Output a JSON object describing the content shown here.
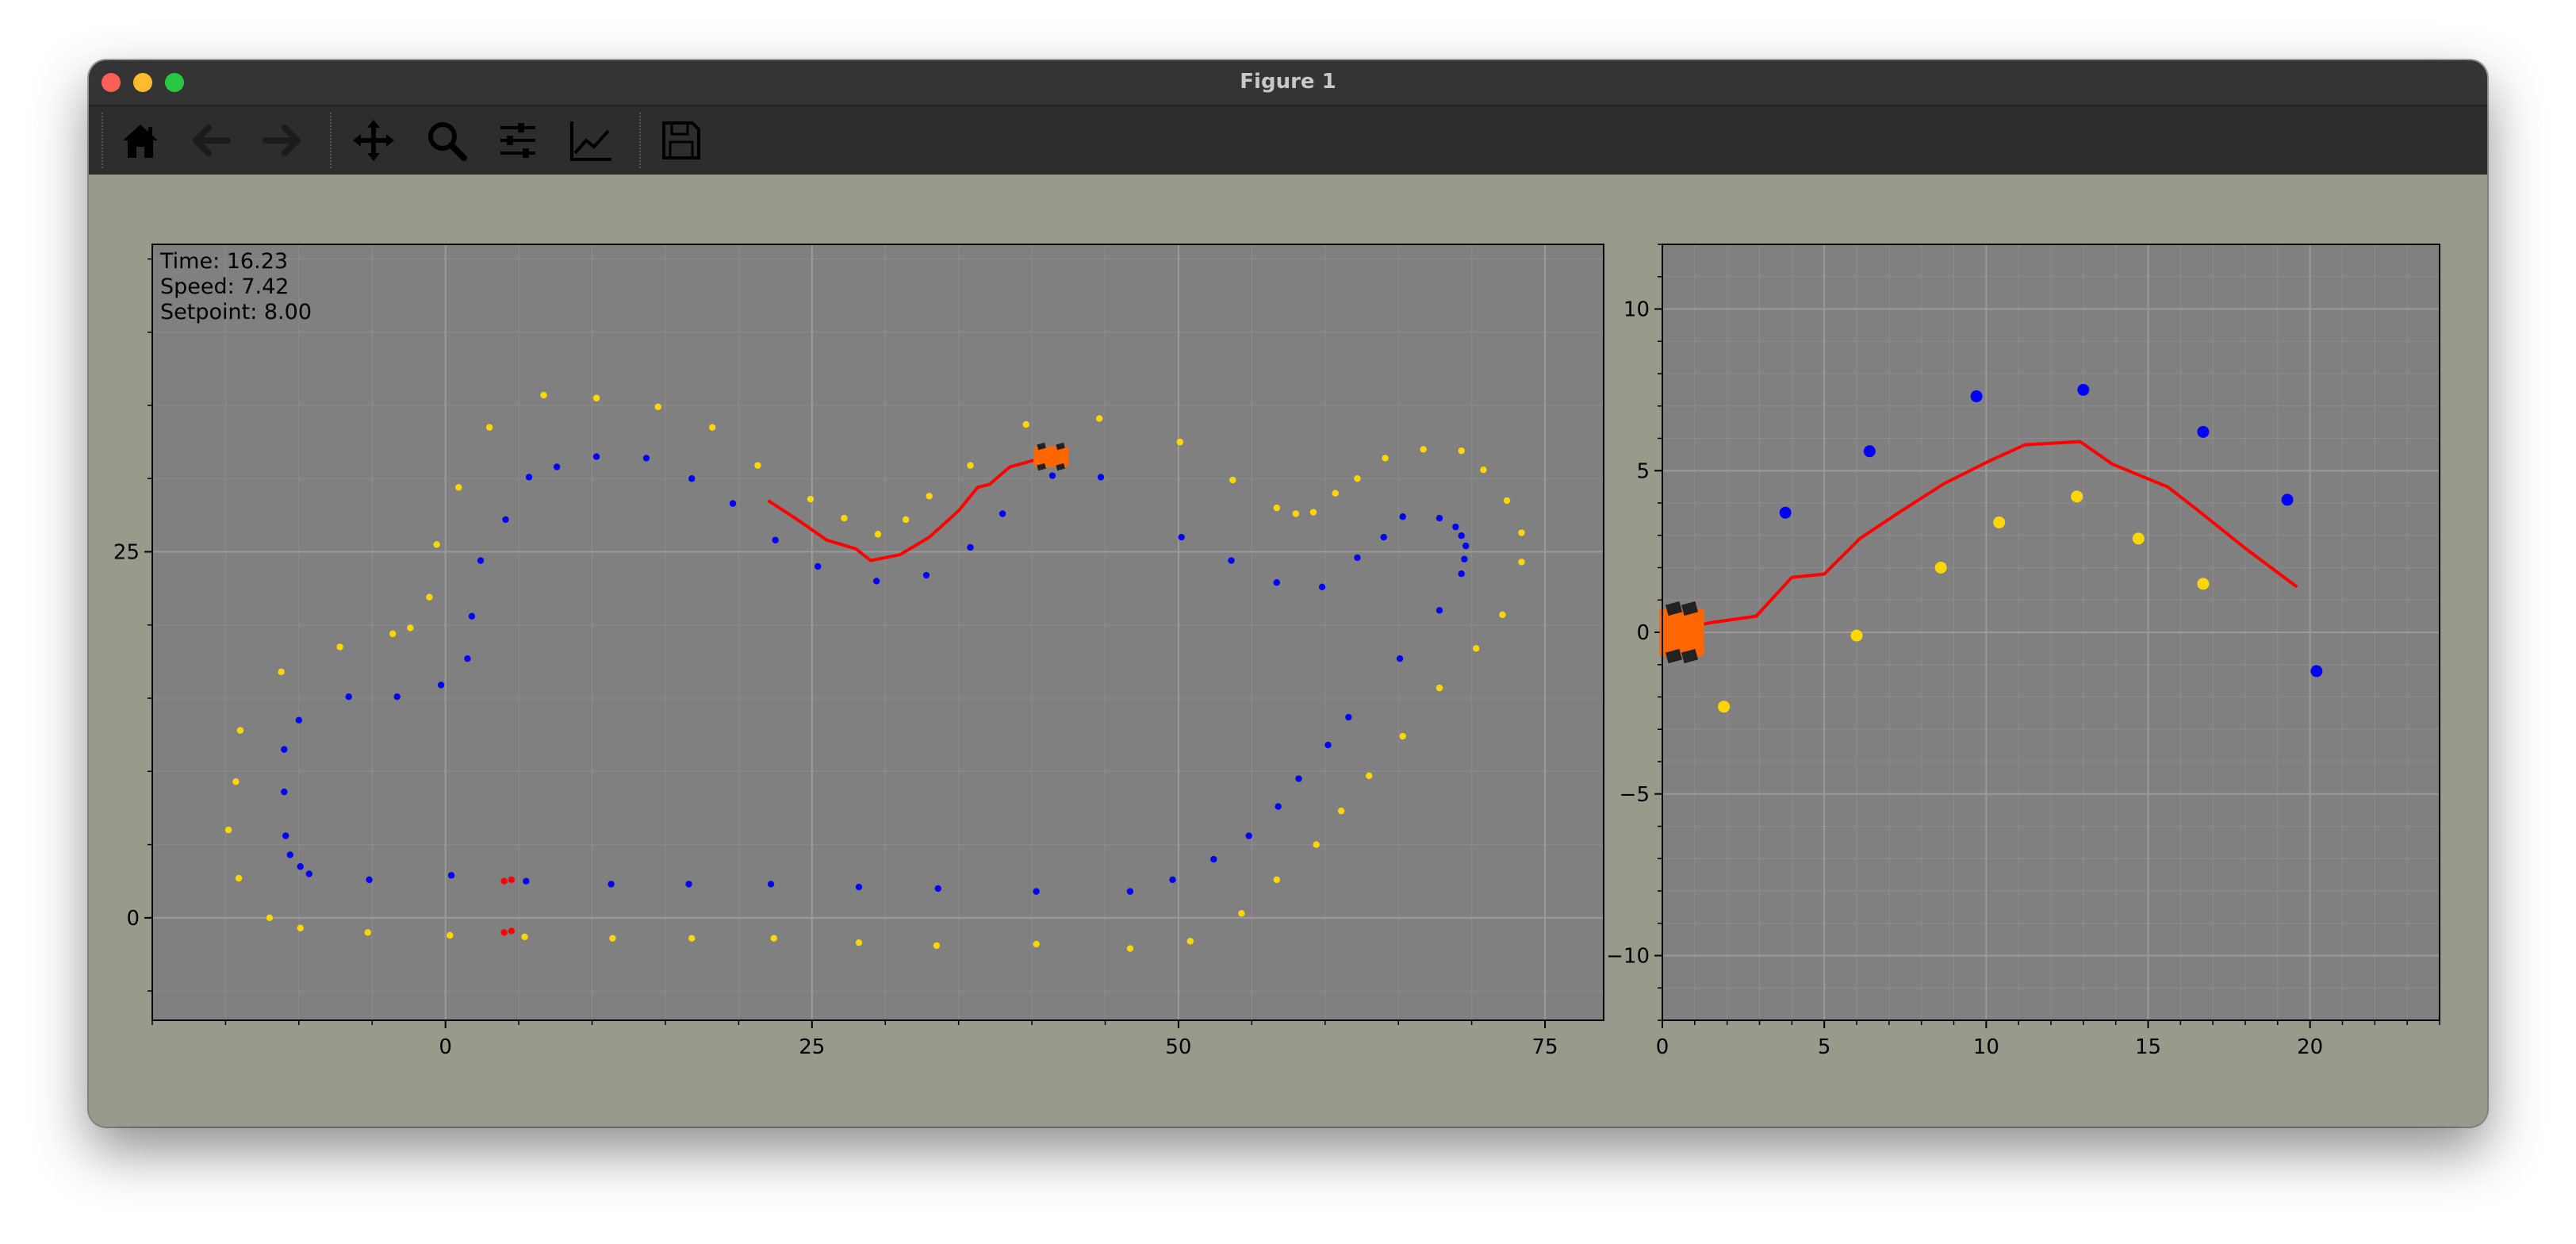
{
  "window": {
    "title": "Figure 1"
  },
  "toolbar": {
    "items": [
      {
        "name": "home",
        "icon": "home-icon"
      },
      {
        "name": "back",
        "icon": "arrow-left-icon"
      },
      {
        "name": "forward",
        "icon": "arrow-right-icon"
      },
      {
        "name": "pan",
        "icon": "move-icon"
      },
      {
        "name": "zoom",
        "icon": "magnifier-icon"
      },
      {
        "name": "configure-subplots",
        "icon": "sliders-icon"
      },
      {
        "name": "edit-axis",
        "icon": "line-chart-icon"
      },
      {
        "name": "save",
        "icon": "floppy-icon"
      }
    ]
  },
  "colors": {
    "figure_bg": "#999a8b",
    "axes_bg": "#808080",
    "blue_cones": "#0000ff",
    "yellow_cones": "#ffd700",
    "path": "#ff0000",
    "car": "#ff6600",
    "wheel": "#222222"
  },
  "chart_data": [
    {
      "type": "scatter",
      "panel": "track",
      "text_lines": [
        "Time:  16.23",
        "Speed:  7.42",
        "Setpoint:  8.00"
      ],
      "xlim": [
        -20,
        79
      ],
      "ylim": [
        -7,
        46
      ],
      "xticks": [
        0,
        25,
        50,
        75
      ],
      "yticks": [
        0,
        25
      ],
      "grid": true,
      "series": [
        {
          "color": "blue",
          "points": [
            [
              -11,
              11.5
            ],
            [
              -10,
              13.5
            ],
            [
              -11,
              8.6
            ],
            [
              -10.9,
              5.6
            ],
            [
              -10.6,
              4.3
            ],
            [
              -9.9,
              3.5
            ],
            [
              -9.3,
              3.0
            ],
            [
              -5.2,
              2.6
            ],
            [
              0.4,
              2.9
            ],
            [
              5.5,
              2.5
            ],
            [
              11.3,
              2.3
            ],
            [
              16.6,
              2.3
            ],
            [
              22.2,
              2.3
            ],
            [
              28.2,
              2.1
            ],
            [
              33.6,
              2.0
            ],
            [
              40.3,
              1.8
            ],
            [
              46.7,
              1.8
            ],
            [
              49.6,
              2.6
            ],
            [
              52.4,
              4.0
            ],
            [
              54.8,
              5.6
            ],
            [
              56.8,
              7.6
            ],
            [
              58.2,
              9.5
            ],
            [
              60.2,
              11.8
            ],
            [
              61.6,
              13.7
            ],
            [
              65.1,
              17.7
            ],
            [
              67.8,
              21.0
            ],
            [
              69.3,
              23.5
            ],
            [
              69.5,
              24.5
            ],
            [
              69.6,
              25.4
            ],
            [
              69.3,
              26.1
            ],
            [
              68.9,
              26.7
            ],
            [
              67.8,
              27.3
            ],
            [
              65.3,
              27.4
            ],
            [
              64.0,
              26.0
            ],
            [
              62.2,
              24.6
            ],
            [
              59.8,
              22.6
            ],
            [
              56.7,
              22.9
            ],
            [
              53.6,
              24.4
            ],
            [
              50.2,
              26.0
            ],
            [
              44.7,
              30.1
            ],
            [
              41.4,
              30.2
            ],
            [
              38.0,
              27.6
            ],
            [
              35.8,
              25.3
            ],
            [
              32.8,
              23.4
            ],
            [
              29.4,
              23.0
            ],
            [
              25.4,
              24.0
            ],
            [
              22.5,
              25.8
            ],
            [
              19.6,
              28.3
            ],
            [
              16.8,
              30.0
            ],
            [
              13.7,
              31.4
            ],
            [
              10.3,
              31.5
            ],
            [
              7.6,
              30.8
            ],
            [
              5.7,
              30.1
            ],
            [
              4.1,
              27.2
            ],
            [
              2.4,
              24.4
            ],
            [
              1.8,
              20.6
            ],
            [
              1.5,
              17.7
            ],
            [
              -0.3,
              15.9
            ],
            [
              -3.3,
              15.1
            ],
            [
              -6.6,
              15.1
            ]
          ]
        },
        {
          "color": "yellow",
          "points": [
            [
              -14.8,
              6.0
            ],
            [
              -14.3,
              9.3
            ],
            [
              -14.0,
              12.8
            ],
            [
              -11.2,
              16.8
            ],
            [
              -7.2,
              18.5
            ],
            [
              -3.6,
              19.4
            ],
            [
              -2.4,
              19.8
            ],
            [
              -1.1,
              21.9
            ],
            [
              -0.6,
              25.5
            ],
            [
              0.9,
              29.4
            ],
            [
              3.0,
              33.5
            ],
            [
              6.7,
              35.7
            ],
            [
              10.3,
              35.5
            ],
            [
              14.5,
              34.9
            ],
            [
              18.2,
              33.5
            ],
            [
              21.3,
              30.9
            ],
            [
              24.9,
              28.6
            ],
            [
              27.2,
              27.3
            ],
            [
              29.5,
              26.2
            ],
            [
              31.4,
              27.2
            ],
            [
              33.0,
              28.8
            ],
            [
              35.8,
              30.9
            ],
            [
              39.6,
              33.7
            ],
            [
              44.6,
              34.1
            ],
            [
              50.1,
              32.5
            ],
            [
              53.7,
              29.9
            ],
            [
              56.7,
              28.0
            ],
            [
              58.0,
              27.6
            ],
            [
              59.2,
              27.7
            ],
            [
              60.7,
              29.0
            ],
            [
              62.2,
              30.0
            ],
            [
              64.1,
              31.4
            ],
            [
              66.7,
              32.0
            ],
            [
              69.3,
              31.9
            ],
            [
              70.8,
              30.6
            ],
            [
              72.4,
              28.5
            ],
            [
              73.4,
              26.3
            ],
            [
              73.4,
              24.3
            ],
            [
              72.1,
              20.7
            ],
            [
              70.3,
              18.4
            ],
            [
              67.8,
              15.7
            ],
            [
              65.3,
              12.4
            ],
            [
              63.0,
              9.7
            ],
            [
              61.1,
              7.3
            ],
            [
              59.4,
              5.0
            ],
            [
              56.7,
              2.6
            ],
            [
              54.3,
              0.3
            ],
            [
              50.8,
              -1.6
            ],
            [
              46.7,
              -2.1
            ],
            [
              40.3,
              -1.8
            ],
            [
              33.5,
              -1.9
            ],
            [
              28.2,
              -1.7
            ],
            [
              22.4,
              -1.4
            ],
            [
              16.8,
              -1.4
            ],
            [
              11.4,
              -1.4
            ],
            [
              5.4,
              -1.3
            ],
            [
              0.3,
              -1.2
            ],
            [
              -5.3,
              -1.0
            ],
            [
              -9.9,
              -0.7
            ],
            [
              -12.0,
              0.0
            ],
            [
              -14.1,
              2.7
            ]
          ]
        },
        {
          "color": "red",
          "points": [
            [
              4.0,
              2.5
            ],
            [
              4.5,
              2.6
            ],
            [
              4.0,
              -1.0
            ],
            [
              4.5,
              -0.9
            ]
          ]
        }
      ],
      "path": [
        [
          22,
          28.5
        ],
        [
          24,
          27.2
        ],
        [
          26,
          25.8
        ],
        [
          28,
          25.2
        ],
        [
          29,
          24.4
        ],
        [
          31,
          24.8
        ],
        [
          33,
          26.0
        ],
        [
          35,
          27.8
        ],
        [
          36.3,
          29.4
        ],
        [
          37.1,
          29.6
        ],
        [
          38.5,
          30.8
        ],
        [
          40.3,
          31.3
        ],
        [
          41.8,
          31.5
        ]
      ],
      "car": {
        "x": 41.3,
        "y": 31.5,
        "heading_deg": 0
      }
    },
    {
      "type": "scatter",
      "panel": "local",
      "xlim": [
        0,
        24
      ],
      "ylim": [
        -12,
        12
      ],
      "xticks": [
        0,
        5,
        10,
        15,
        20
      ],
      "yticks": [
        -10,
        -5,
        0,
        5,
        10
      ],
      "grid": true,
      "series": [
        {
          "color": "blue",
          "points": [
            [
              3.8,
              3.7
            ],
            [
              6.4,
              5.6
            ],
            [
              9.7,
              7.3
            ],
            [
              13.0,
              7.5
            ],
            [
              16.7,
              6.2
            ],
            [
              19.3,
              4.1
            ],
            [
              20.2,
              -1.2
            ]
          ]
        },
        {
          "color": "yellow",
          "points": [
            [
              1.9,
              -2.3
            ],
            [
              6.0,
              -0.1
            ],
            [
              8.6,
              2.0
            ],
            [
              10.4,
              3.4
            ],
            [
              12.8,
              4.2
            ],
            [
              14.7,
              2.9
            ],
            [
              16.7,
              1.5
            ]
          ]
        }
      ],
      "path": [
        [
          0,
          0
        ],
        [
          1.5,
          0.3
        ],
        [
          2.9,
          0.5
        ],
        [
          4.0,
          1.7
        ],
        [
          5.0,
          1.8
        ],
        [
          6.1,
          2.9
        ],
        [
          7.3,
          3.7
        ],
        [
          8.7,
          4.6
        ],
        [
          10.1,
          5.3
        ],
        [
          11.2,
          5.8
        ],
        [
          12.9,
          5.9
        ],
        [
          13.9,
          5.2
        ],
        [
          15.6,
          4.5
        ],
        [
          16.5,
          3.8
        ],
        [
          18.0,
          2.6
        ],
        [
          19.6,
          1.4
        ]
      ],
      "car": {
        "x": 0.6,
        "y": 0.0,
        "heading_deg": 0
      }
    }
  ]
}
